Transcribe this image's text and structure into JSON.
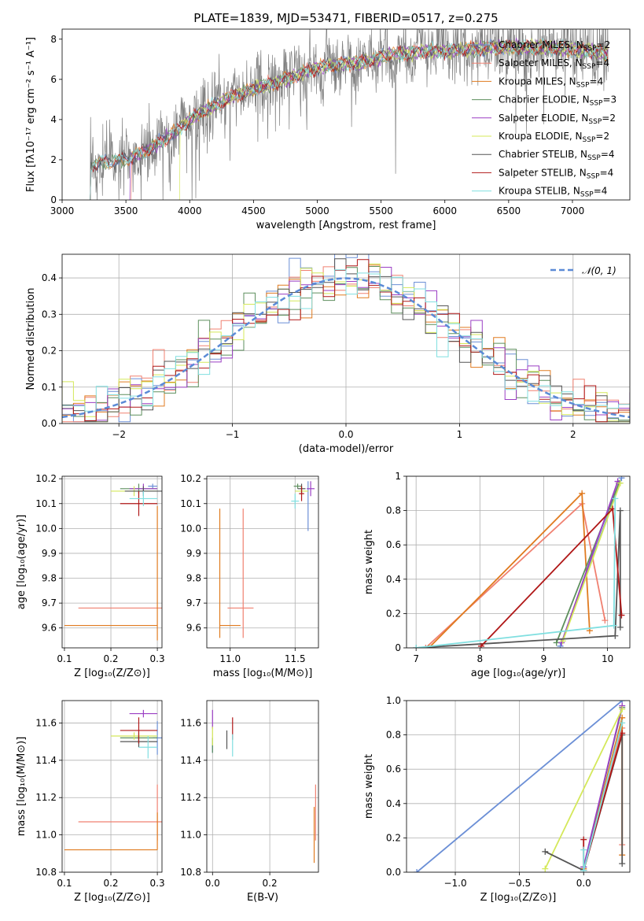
{
  "figure_title": "PLATE=1839, MJD=53471, FIBERID=0517, z=0.275",
  "colors": {
    "Chabrier MILES": "#6b8fd6",
    "Salpeter MILES": "#f08070",
    "Kroupa MILES": "#e07b20",
    "Chabrier ELODIE": "#5d8f5d",
    "Salpeter ELODIE": "#9b3fc4",
    "Kroupa ELODIE": "#d4e85a",
    "Chabrier STELIB": "#555555",
    "Salpeter STELIB": "#b01818",
    "Kroupa STELIB": "#80dfe0",
    "data": "#808080",
    "normal": "#5b8ad6"
  },
  "legend": {
    "entries": [
      {
        "name": "Chabrier MILES",
        "base": "Chabrier MILES, N",
        "sub": "SSP",
        "tail": "=2"
      },
      {
        "name": "Salpeter MILES",
        "base": "Salpeter MILES, N",
        "sub": "SSP",
        "tail": "=4"
      },
      {
        "name": "Kroupa MILES",
        "base": "Kroupa MILES, N",
        "sub": "SSP",
        "tail": "=4"
      },
      {
        "name": "Chabrier ELODIE",
        "base": "Chabrier ELODIE, N",
        "sub": "SSP",
        "tail": "=3"
      },
      {
        "name": "Salpeter ELODIE",
        "base": "Salpeter ELODIE, N",
        "sub": "SSP",
        "tail": "=2"
      },
      {
        "name": "Kroupa ELODIE",
        "base": "Kroupa ELODIE, N",
        "sub": "SSP",
        "tail": "=2"
      },
      {
        "name": "Chabrier STELIB",
        "base": "Chabrier STELIB, N",
        "sub": "SSP",
        "tail": "=4"
      },
      {
        "name": "Salpeter STELIB",
        "base": "Salpeter STELIB, N",
        "sub": "SSP",
        "tail": "=4"
      },
      {
        "name": "Kroupa STELIB",
        "base": "Kroupa STELIB, N",
        "sub": "SSP",
        "tail": "=4"
      }
    ],
    "normal": "𝒩(0, 1)"
  },
  "chart_data": [
    {
      "id": "spectrum",
      "type": "line",
      "xlabel": "wavelength [Angstrom, rest frame]",
      "ylabel": "Flux [fλ10⁻¹⁷ erg cm⁻² s⁻¹ A⁻¹]",
      "xlim": [
        3000,
        7450
      ],
      "ylim": [
        0,
        8.5
      ],
      "xticks": [
        3000,
        3500,
        4000,
        4500,
        5000,
        5500,
        6000,
        6500,
        7000
      ],
      "yticks": [
        0,
        2,
        4,
        6,
        8
      ],
      "model_envelope": {
        "x": [
          3220,
          3300,
          3400,
          3550,
          3700,
          3850,
          3950,
          4050,
          4200,
          4350,
          4500,
          4650,
          4800,
          4950,
          5100,
          5250,
          5400,
          5550,
          5700,
          5850,
          6000,
          6200,
          6400,
          6600,
          6800,
          7000,
          7150,
          7250
        ],
        "y": [
          1.7,
          1.85,
          1.9,
          2.1,
          2.6,
          3.2,
          3.7,
          4.2,
          4.7,
          5.2,
          5.5,
          5.8,
          6.1,
          6.5,
          6.7,
          6.8,
          6.9,
          7.2,
          7.3,
          7.4,
          7.4,
          7.5,
          7.6,
          7.6,
          7.6,
          7.5,
          7.4,
          7.3
        ]
      },
      "data_noise_amplitude": 0.9
    },
    {
      "id": "residuals",
      "type": "line",
      "xlabel": "(data-model)/error",
      "ylabel": "Normed distribution",
      "xlim": [
        -2.5,
        2.5
      ],
      "ylim": [
        0,
        0.465
      ],
      "xticks": [
        -2,
        -1,
        0,
        1,
        2
      ],
      "yticks": [
        0.0,
        0.1,
        0.2,
        0.3,
        0.4
      ],
      "bin_width": 0.1,
      "histogram_scatter": 0.035,
      "legend_loc": "upper right"
    },
    {
      "id": "age_vs_Z",
      "type": "scatter",
      "xlabel": "Z [log₁₀(Z/Z⊙)]",
      "ylabel": "age  [log₁₀(age/yr)]",
      "xlim": [
        0.095,
        0.31
      ],
      "ylim": [
        9.52,
        10.21
      ],
      "xticks": [
        0.1,
        0.2,
        0.3
      ],
      "yticks": [
        9.6,
        9.7,
        9.8,
        9.9,
        10.0,
        10.1,
        10.2
      ],
      "points": [
        {
          "model": "Chabrier MILES",
          "x": 0.29,
          "y": 10.17,
          "xerr": 0.01,
          "yerr": 0.01
        },
        {
          "model": "Salpeter MILES",
          "x": 0.23,
          "y": 9.68,
          "xerr": 0.1,
          "yerr": 0.0
        },
        {
          "model": "Kroupa MILES",
          "x": 0.2,
          "y": 9.61,
          "xerr": 0.1,
          "yerr": 0.0
        },
        {
          "model": "Kroupa MILES",
          "x": 0.3,
          "y": 9.82,
          "xerr": 0.0,
          "yerr": 0.27
        },
        {
          "model": "Chabrier ELODIE",
          "x": 0.26,
          "y": 10.16,
          "xerr": 0.04,
          "yerr": 0.02
        },
        {
          "model": "Salpeter ELODIE",
          "x": 0.27,
          "y": 10.16,
          "xerr": 0.03,
          "yerr": 0.02
        },
        {
          "model": "Kroupa ELODIE",
          "x": 0.25,
          "y": 10.15,
          "xerr": 0.05,
          "yerr": 0.02
        },
        {
          "model": "Chabrier STELIB",
          "x": 0.27,
          "y": 10.15,
          "xerr": 0.04,
          "yerr": 0.02
        },
        {
          "model": "Salpeter STELIB",
          "x": 0.26,
          "y": 10.1,
          "xerr": 0.04,
          "yerr": 0.05
        },
        {
          "model": "Kroupa STELIB",
          "x": 0.27,
          "y": 10.12,
          "xerr": 0.03,
          "yerr": 0.03
        }
      ]
    },
    {
      "id": "age_vs_mass",
      "type": "scatter",
      "xlabel": "mass [log₁₀(M/M⊙)]",
      "ylabel": "",
      "xlim": [
        10.82,
        11.68
      ],
      "ylim": [
        9.52,
        10.21
      ],
      "xticks": [
        11.0,
        11.5
      ],
      "yticks": [
        9.6,
        9.7,
        9.8,
        9.9,
        10.0,
        10.1,
        10.2
      ],
      "points": [
        {
          "model": "Chabrier MILES",
          "x": 11.6,
          "y": 10.09,
          "xerr": 0.0,
          "yerr": 0.1
        },
        {
          "model": "Salpeter MILES",
          "x": 11.08,
          "y": 9.68,
          "xerr": 0.1,
          "yerr": 0.0
        },
        {
          "model": "Salpeter MILES",
          "x": 11.1,
          "y": 9.82,
          "xerr": 0.0,
          "yerr": 0.26
        },
        {
          "model": "Kroupa MILES",
          "x": 11.0,
          "y": 9.61,
          "xerr": 0.08,
          "yerr": 0.0
        },
        {
          "model": "Kroupa MILES",
          "x": 10.92,
          "y": 9.82,
          "xerr": 0.0,
          "yerr": 0.26
        },
        {
          "model": "Chabrier ELODIE",
          "x": 11.52,
          "y": 10.17,
          "xerr": 0.03,
          "yerr": 0.01
        },
        {
          "model": "Salpeter ELODIE",
          "x": 11.62,
          "y": 10.16,
          "xerr": 0.03,
          "yerr": 0.03
        },
        {
          "model": "Kroupa ELODIE",
          "x": 11.55,
          "y": 10.15,
          "xerr": 0.05,
          "yerr": 0.02
        },
        {
          "model": "Chabrier STELIB",
          "x": 11.55,
          "y": 10.16,
          "xerr": 0.03,
          "yerr": 0.02
        },
        {
          "model": "Salpeter STELIB",
          "x": 11.55,
          "y": 10.14,
          "xerr": 0.02,
          "yerr": 0.03
        },
        {
          "model": "Kroupa STELIB",
          "x": 11.5,
          "y": 10.11,
          "xerr": 0.03,
          "yerr": 0.03
        }
      ]
    },
    {
      "id": "massweight_vs_age",
      "type": "line",
      "xlabel": "age  [log₁₀(age/yr)]",
      "ylabel": "mass weight",
      "xlim": [
        6.85,
        10.35
      ],
      "ylim": [
        0,
        1.0
      ],
      "xticks": [
        7,
        8,
        9,
        10
      ],
      "yticks": [
        0.0,
        0.2,
        0.4,
        0.6,
        0.8,
        1.0
      ],
      "series": [
        {
          "name": "Chabrier MILES",
          "x": [
            9.26,
            10.22
          ],
          "y": [
            0.01,
            0.99
          ]
        },
        {
          "name": "Salpeter MILES",
          "x": [
            7.15,
            9.6,
            9.96
          ],
          "y": [
            0.0,
            0.84,
            0.16
          ]
        },
        {
          "name": "Kroupa MILES",
          "x": [
            7.2,
            9.6,
            9.72
          ],
          "y": [
            0.0,
            0.9,
            0.1
          ]
        },
        {
          "name": "Chabrier ELODIE",
          "x": [
            9.2,
            10.18
          ],
          "y": [
            0.03,
            0.96
          ]
        },
        {
          "name": "Salpeter ELODIE",
          "x": [
            9.28,
            10.16
          ],
          "y": [
            0.03,
            0.97
          ]
        },
        {
          "name": "Kroupa ELODIE",
          "x": [
            9.3,
            10.2
          ],
          "y": [
            0.04,
            0.96
          ]
        },
        {
          "name": "Chabrier STELIB",
          "x": [
            7.0,
            10.12,
            10.2,
            10.2
          ],
          "y": [
            0.0,
            0.07,
            0.8,
            0.12
          ]
        },
        {
          "name": "Salpeter STELIB",
          "x": [
            8.02,
            10.08,
            10.22
          ],
          "y": [
            0.01,
            0.81,
            0.19
          ]
        },
        {
          "name": "Kroupa STELIB",
          "x": [
            7.0,
            10.1,
            10.12
          ],
          "y": [
            0.0,
            0.13,
            0.87
          ]
        }
      ]
    },
    {
      "id": "mass_vs_Z",
      "type": "scatter",
      "xlabel": "Z [log₁₀(Z/Z⊙)]",
      "ylabel": "mass [log₁₀(M/M⊙)]",
      "xlim": [
        0.095,
        0.31
      ],
      "ylim": [
        10.8,
        11.72
      ],
      "xticks": [
        0.1,
        0.2,
        0.3
      ],
      "yticks": [
        10.8,
        11.0,
        11.2,
        11.4,
        11.6
      ],
      "points": [
        {
          "model": "Chabrier MILES",
          "x": 0.3,
          "y": 11.52,
          "xerr": 0.01,
          "yerr": 0.09
        },
        {
          "model": "Salpeter MILES",
          "x": 0.23,
          "y": 11.07,
          "xerr": 0.1,
          "yerr": 0.0
        },
        {
          "model": "Salpeter MILES",
          "x": 0.3,
          "y": 11.12,
          "xerr": 0.0,
          "yerr": 0.15
        },
        {
          "model": "Kroupa MILES",
          "x": 0.2,
          "y": 10.92,
          "xerr": 0.1,
          "yerr": 0.0
        },
        {
          "model": "Kroupa MILES",
          "x": 0.3,
          "y": 11.02,
          "xerr": 0.0,
          "yerr": 0.1
        },
        {
          "model": "Chabrier ELODIE",
          "x": 0.26,
          "y": 11.52,
          "xerr": 0.04,
          "yerr": 0.03
        },
        {
          "model": "Salpeter ELODIE",
          "x": 0.27,
          "y": 11.65,
          "xerr": 0.03,
          "yerr": 0.02
        },
        {
          "model": "Kroupa ELODIE",
          "x": 0.25,
          "y": 11.53,
          "xerr": 0.05,
          "yerr": 0.02
        },
        {
          "model": "Chabrier STELIB",
          "x": 0.26,
          "y": 11.5,
          "xerr": 0.04,
          "yerr": 0.03
        },
        {
          "model": "Salpeter STELIB",
          "x": 0.26,
          "y": 11.56,
          "xerr": 0.04,
          "yerr": 0.07
        },
        {
          "model": "Kroupa STELIB",
          "x": 0.28,
          "y": 11.47,
          "xerr": 0.02,
          "yerr": 0.06
        }
      ]
    },
    {
      "id": "mass_vs_EBV",
      "type": "scatter",
      "xlabel": "E(B-V)",
      "ylabel": "",
      "xlim": [
        -0.02,
        0.37
      ],
      "ylim": [
        10.8,
        11.72
      ],
      "xticks": [
        0.0,
        0.2
      ],
      "yticks": [
        10.8,
        11.0,
        11.2,
        11.4,
        11.6
      ],
      "points": [
        {
          "model": "Chabrier MILES",
          "x": 0.0,
          "y": 11.46,
          "xerr": 0.0,
          "yerr": 0.02
        },
        {
          "model": "Salpeter MILES",
          "x": 0.36,
          "y": 11.12,
          "xerr": 0.0,
          "yerr": 0.15
        },
        {
          "model": "Kroupa MILES",
          "x": 0.355,
          "y": 11.0,
          "xerr": 0.0,
          "yerr": 0.15
        },
        {
          "model": "Chabrier ELODIE",
          "x": 0.0,
          "y": 11.48,
          "xerr": 0.0,
          "yerr": 0.04
        },
        {
          "model": "Salpeter ELODIE",
          "x": 0.0,
          "y": 11.62,
          "xerr": 0.0,
          "yerr": 0.05
        },
        {
          "model": "Kroupa ELODIE",
          "x": 0.0,
          "y": 11.53,
          "xerr": 0.0,
          "yerr": 0.05
        },
        {
          "model": "Chabrier STELIB",
          "x": 0.05,
          "y": 11.51,
          "xerr": 0.0,
          "yerr": 0.05
        },
        {
          "model": "Salpeter STELIB",
          "x": 0.07,
          "y": 11.57,
          "xerr": 0.0,
          "yerr": 0.06
        },
        {
          "model": "Kroupa STELIB",
          "x": 0.07,
          "y": 11.48,
          "xerr": 0.0,
          "yerr": 0.06
        }
      ]
    },
    {
      "id": "massweight_vs_Z",
      "type": "line",
      "xlabel": "Z [log₁₀(Z/Z⊙)]",
      "ylabel": "mass weight",
      "xlim": [
        -1.38,
        0.36
      ],
      "ylim": [
        0,
        1.0
      ],
      "xticks": [
        -1.0,
        -0.5,
        0.0
      ],
      "yticks": [
        0.0,
        0.2,
        0.4,
        0.6,
        0.8,
        1.0
      ],
      "series": [
        {
          "name": "Chabrier MILES",
          "x": [
            -1.3,
            0.3
          ],
          "y": [
            0.0,
            1.0
          ]
        },
        {
          "name": "Salpeter MILES",
          "x": [
            0.0,
            0.3,
            0.3
          ],
          "y": [
            0.02,
            0.84,
            0.16
          ]
        },
        {
          "name": "Kroupa MILES",
          "x": [
            0.0,
            0.3,
            0.3
          ],
          "y": [
            0.02,
            0.9,
            0.1
          ]
        },
        {
          "name": "Chabrier ELODIE",
          "x": [
            0.0,
            0.3
          ],
          "y": [
            0.03,
            0.96
          ]
        },
        {
          "name": "Salpeter ELODIE",
          "x": [
            0.0,
            0.3
          ],
          "y": [
            0.03,
            0.97
          ]
        },
        {
          "name": "Kroupa ELODIE",
          "x": [
            -0.3,
            0.3
          ],
          "y": [
            0.02,
            0.95
          ]
        },
        {
          "name": "Chabrier STELIB",
          "x": [
            -0.3,
            0.0,
            0.3,
            0.3
          ],
          "y": [
            0.12,
            0.01,
            0.8,
            0.05
          ]
        },
        {
          "name": "Salpeter STELIB",
          "x": [
            0.0,
            0.0,
            0.3
          ],
          "y": [
            0.19,
            0.01,
            0.81
          ]
        },
        {
          "name": "Kroupa STELIB",
          "x": [
            0.0,
            0.0,
            0.3
          ],
          "y": [
            0.13,
            0.01,
            0.87
          ]
        }
      ]
    }
  ]
}
